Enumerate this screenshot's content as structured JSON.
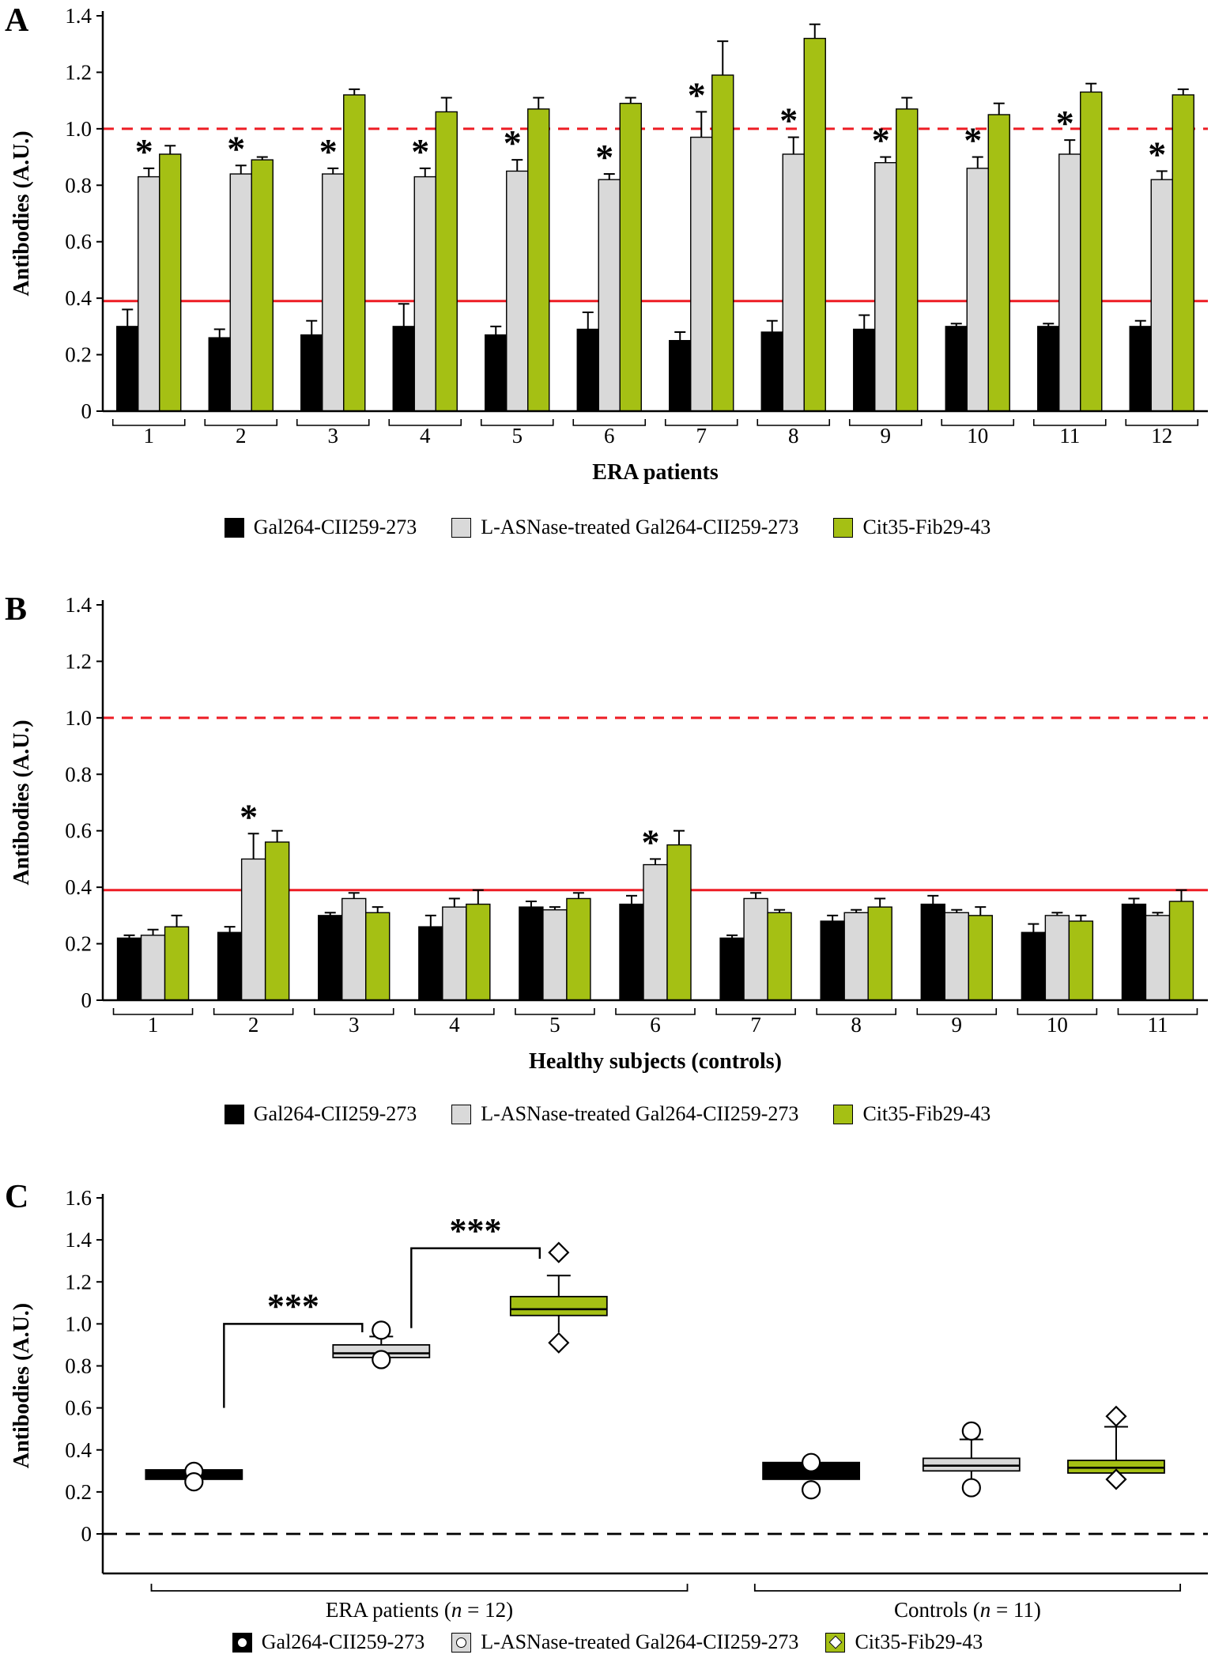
{
  "figure": {
    "background": "#ffffff",
    "colors": {
      "black": "#000000",
      "gray": "#d9d9d9",
      "green": "#a5c014",
      "red": "#ed1c24"
    }
  },
  "chart_data": [
    {
      "id": "panel-a",
      "panel_label": "A",
      "type": "bar",
      "ylabel": "Antibodies (A.U.)",
      "xlabel": "ERA patients",
      "ylim": [
        0,
        1.4
      ],
      "yticks": [
        0,
        0.2,
        0.4,
        0.6,
        0.8,
        1.0,
        1.2,
        1.4
      ],
      "categories": [
        "1",
        "2",
        "3",
        "4",
        "5",
        "6",
        "7",
        "8",
        "9",
        "10",
        "11",
        "12"
      ],
      "series": [
        {
          "name": "Gal264-CII259-273",
          "color": "black",
          "values": [
            0.3,
            0.26,
            0.27,
            0.3,
            0.27,
            0.29,
            0.25,
            0.28,
            0.29,
            0.3,
            0.3,
            0.3
          ],
          "errors": [
            0.06,
            0.03,
            0.05,
            0.08,
            0.03,
            0.06,
            0.03,
            0.04,
            0.05,
            0.01,
            0.01,
            0.02
          ]
        },
        {
          "name": "L-ASNase-treated Gal264-CII259-273",
          "color": "gray",
          "values": [
            0.83,
            0.84,
            0.84,
            0.83,
            0.85,
            0.82,
            0.97,
            0.91,
            0.88,
            0.86,
            0.91,
            0.82
          ],
          "errors": [
            0.03,
            0.03,
            0.02,
            0.03,
            0.04,
            0.02,
            0.09,
            0.06,
            0.02,
            0.04,
            0.05,
            0.03
          ]
        },
        {
          "name": "Cit35-Fib29-43",
          "color": "green",
          "values": [
            0.91,
            0.89,
            1.12,
            1.06,
            1.07,
            1.09,
            1.19,
            1.32,
            1.07,
            1.05,
            1.13,
            1.12
          ],
          "errors": [
            0.03,
            0.01,
            0.02,
            0.05,
            0.04,
            0.02,
            0.12,
            0.05,
            0.04,
            0.04,
            0.03,
            0.02
          ]
        }
      ],
      "ref_lines": [
        {
          "y": 1.0,
          "color": "red",
          "dashed": true
        },
        {
          "y": 0.39,
          "color": "red",
          "dashed": false
        }
      ],
      "asterisks": {
        "series_index": 1,
        "categories": [
          "1",
          "2",
          "3",
          "4",
          "5",
          "6",
          "7",
          "8",
          "9",
          "10",
          "11",
          "12"
        ]
      }
    },
    {
      "id": "panel-b",
      "panel_label": "B",
      "type": "bar",
      "ylabel": "Antibodies (A.U.)",
      "xlabel": "Healthy subjects (controls)",
      "ylim": [
        0,
        1.4
      ],
      "yticks": [
        0,
        0.2,
        0.4,
        0.6,
        0.8,
        1.0,
        1.2,
        1.4
      ],
      "categories": [
        "1",
        "2",
        "3",
        "4",
        "5",
        "6",
        "7",
        "8",
        "9",
        "10",
        "11"
      ],
      "series": [
        {
          "name": "Gal264-CII259-273",
          "color": "black",
          "values": [
            0.22,
            0.24,
            0.3,
            0.26,
            0.33,
            0.34,
            0.22,
            0.28,
            0.34,
            0.24,
            0.34
          ],
          "errors": [
            0.01,
            0.02,
            0.01,
            0.04,
            0.02,
            0.03,
            0.01,
            0.02,
            0.03,
            0.03,
            0.02
          ]
        },
        {
          "name": "L-ASNase-treated Gal264-CII259-273",
          "color": "gray",
          "values": [
            0.23,
            0.5,
            0.36,
            0.33,
            0.32,
            0.48,
            0.36,
            0.31,
            0.31,
            0.3,
            0.3
          ],
          "errors": [
            0.02,
            0.09,
            0.02,
            0.03,
            0.01,
            0.02,
            0.02,
            0.01,
            0.01,
            0.01,
            0.01
          ]
        },
        {
          "name": "Cit35-Fib29-43",
          "color": "green",
          "values": [
            0.26,
            0.56,
            0.31,
            0.34,
            0.36,
            0.55,
            0.31,
            0.33,
            0.3,
            0.28,
            0.35
          ],
          "errors": [
            0.04,
            0.04,
            0.02,
            0.05,
            0.02,
            0.05,
            0.01,
            0.03,
            0.03,
            0.02,
            0.04
          ]
        }
      ],
      "ref_lines": [
        {
          "y": 1.0,
          "color": "red",
          "dashed": true
        },
        {
          "y": 0.39,
          "color": "red",
          "dashed": false
        }
      ],
      "asterisks": {
        "series_index": 1,
        "categories": [
          "2",
          "6"
        ]
      }
    },
    {
      "id": "panel-c",
      "panel_label": "C",
      "type": "box",
      "ylabel": "Antibodies (A.U.)",
      "ylim": [
        -0.19,
        1.6
      ],
      "yticks": [
        0,
        0.2,
        0.4,
        0.6,
        0.8,
        1.0,
        1.2,
        1.4,
        1.6
      ],
      "zero_line": {
        "y": 0,
        "color": "black",
        "dashed": true
      },
      "groups": [
        {
          "label_prefix": "ERA patients (",
          "label_italic": "n",
          "label_suffix": " = 12)",
          "boxes": [
            {
              "name": "Gal264-CII259-273",
              "color": "black",
              "marker": "circle",
              "q1": 0.26,
              "median": 0.283,
              "q3": 0.305,
              "outliers": [
                0.298,
                0.248
              ]
            },
            {
              "name": "L-ASNase-treated Gal264-CII259-273",
              "color": "gray",
              "marker": "circle",
              "q1": 0.84,
              "median": 0.86,
              "q3": 0.9,
              "whisker_high": 0.94,
              "outliers": [
                0.97,
                0.83
              ]
            },
            {
              "name": "Cit35-Fib29-43",
              "color": "green",
              "marker": "diamond",
              "q1": 1.04,
              "median": 1.07,
              "q3": 1.13,
              "whisker_high": 1.23,
              "whisker_low": 0.96,
              "outliers": [
                1.34,
                0.91
              ]
            }
          ]
        },
        {
          "label_prefix": "Controls (",
          "label_italic": "n",
          "label_suffix": " = 11)",
          "boxes": [
            {
              "name": "Gal264-CII259-273",
              "color": "black",
              "marker": "circle",
              "q1": 0.26,
              "median": 0.3,
              "q3": 0.34,
              "outliers": [
                0.34,
                0.21
              ]
            },
            {
              "name": "L-ASNase-treated Gal264-CII259-273",
              "color": "gray",
              "marker": "circle",
              "q1": 0.3,
              "median": 0.325,
              "q3": 0.36,
              "whisker_high": 0.45,
              "whisker_low": 0.26,
              "outliers": [
                0.49,
                0.22
              ]
            },
            {
              "name": "Cit35-Fib29-43",
              "color": "green",
              "marker": "diamond",
              "q1": 0.29,
              "median": 0.315,
              "q3": 0.35,
              "whisker_high": 0.51,
              "outliers": [
                0.56,
                0.26
              ]
            }
          ]
        }
      ],
      "significance": [
        {
          "label": "***",
          "from_box": [
            0,
            0
          ],
          "to_box": [
            0,
            1
          ],
          "bar_y": 1.0,
          "drop_left": 0.6,
          "drop_right": 0.96
        },
        {
          "label": "***",
          "from_box": [
            0,
            1
          ],
          "to_box": [
            0,
            2
          ],
          "bar_y": 1.36,
          "drop_left": 0.98,
          "drop_right": 1.31
        }
      ]
    }
  ]
}
